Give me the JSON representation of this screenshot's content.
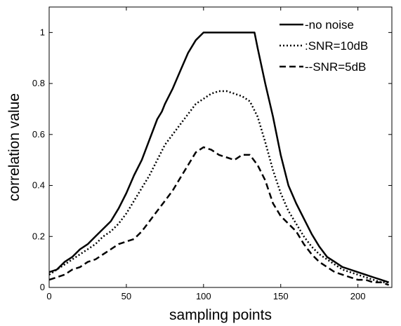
{
  "chart_data": {
    "type": "line",
    "title": "",
    "xlabel": "sampling points",
    "ylabel": "correlation value",
    "xlim": [
      0,
      222
    ],
    "ylim": [
      0,
      1.1
    ],
    "xticks": [
      "0",
      "50",
      "100",
      "150",
      "200"
    ],
    "yticks": [
      "0",
      "0.2",
      "0.4",
      "0.6",
      "0.8",
      "1"
    ],
    "legend_position": "top-right",
    "grid": false,
    "series": [
      {
        "name": "-no noise",
        "style": "solid",
        "color": "#000000",
        "x": [
          0,
          5,
          10,
          15,
          20,
          25,
          30,
          35,
          40,
          45,
          50,
          55,
          60,
          65,
          70,
          73,
          75,
          80,
          85,
          90,
          95,
          100,
          105,
          110,
          115,
          120,
          125,
          130,
          133,
          135,
          140,
          145,
          150,
          155,
          160,
          165,
          170,
          175,
          180,
          185,
          190,
          195,
          200,
          205,
          210,
          215,
          220
        ],
        "y": [
          0.06,
          0.07,
          0.1,
          0.12,
          0.15,
          0.17,
          0.2,
          0.23,
          0.26,
          0.31,
          0.37,
          0.44,
          0.5,
          0.58,
          0.66,
          0.69,
          0.72,
          0.78,
          0.85,
          0.92,
          0.97,
          1.0,
          1.0,
          1.0,
          1.0,
          1.0,
          1.0,
          1.0,
          1.0,
          0.94,
          0.8,
          0.67,
          0.52,
          0.4,
          0.33,
          0.27,
          0.21,
          0.16,
          0.12,
          0.1,
          0.08,
          0.07,
          0.06,
          0.05,
          0.04,
          0.03,
          0.02
        ]
      },
      {
        "name": ":SNR=10dB",
        "style": "dotted",
        "color": "#000000",
        "x": [
          0,
          5,
          10,
          15,
          20,
          25,
          30,
          35,
          40,
          45,
          50,
          55,
          60,
          65,
          70,
          75,
          80,
          85,
          90,
          95,
          100,
          105,
          110,
          115,
          120,
          125,
          130,
          135,
          140,
          145,
          150,
          155,
          160,
          165,
          170,
          175,
          180,
          185,
          190,
          195,
          200,
          205,
          210,
          215,
          220
        ],
        "y": [
          0.05,
          0.07,
          0.09,
          0.11,
          0.13,
          0.15,
          0.17,
          0.2,
          0.22,
          0.25,
          0.29,
          0.34,
          0.39,
          0.44,
          0.5,
          0.56,
          0.6,
          0.64,
          0.68,
          0.72,
          0.74,
          0.76,
          0.77,
          0.77,
          0.76,
          0.75,
          0.73,
          0.67,
          0.57,
          0.46,
          0.37,
          0.3,
          0.25,
          0.2,
          0.16,
          0.13,
          0.11,
          0.09,
          0.07,
          0.06,
          0.05,
          0.04,
          0.03,
          0.02,
          0.02
        ]
      },
      {
        "name": "--SNR=5dB",
        "style": "dashed",
        "color": "#000000",
        "x": [
          0,
          5,
          10,
          15,
          20,
          25,
          30,
          35,
          40,
          45,
          50,
          55,
          60,
          65,
          70,
          75,
          80,
          85,
          90,
          95,
          100,
          105,
          110,
          115,
          120,
          125,
          130,
          135,
          140,
          145,
          150,
          155,
          160,
          165,
          170,
          175,
          180,
          185,
          190,
          195,
          200,
          205,
          210,
          215,
          220
        ],
        "y": [
          0.03,
          0.04,
          0.05,
          0.07,
          0.08,
          0.1,
          0.11,
          0.13,
          0.15,
          0.17,
          0.18,
          0.19,
          0.22,
          0.26,
          0.3,
          0.34,
          0.38,
          0.43,
          0.48,
          0.53,
          0.55,
          0.54,
          0.52,
          0.51,
          0.5,
          0.52,
          0.52,
          0.48,
          0.42,
          0.33,
          0.28,
          0.25,
          0.22,
          0.17,
          0.13,
          0.1,
          0.08,
          0.06,
          0.05,
          0.04,
          0.03,
          0.03,
          0.02,
          0.02,
          0.01
        ]
      }
    ]
  }
}
